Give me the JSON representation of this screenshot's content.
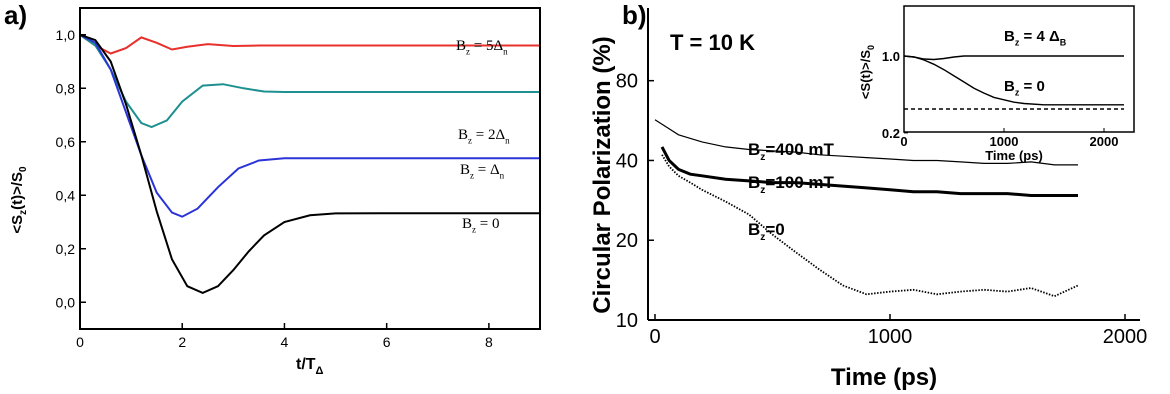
{
  "chart_data": [
    {
      "panel": "a)",
      "type": "line",
      "xlabel": "t/T",
      "xlabel_sub": "Δ",
      "ylabel": "<S",
      "ylabel_sub": "z",
      "ylabel_rest": "(t)>/S",
      "ylabel_sub2": "0",
      "xlim": [
        0,
        9
      ],
      "ylim": [
        -0.1,
        1.1
      ],
      "xticks": [
        0,
        2,
        4,
        6,
        8
      ],
      "xtick_labels": [
        "0",
        "2",
        "4",
        "6",
        "8"
      ],
      "yticks": [
        0.0,
        0.2,
        0.4,
        0.6,
        0.8,
        1.0
      ],
      "ytick_labels": [
        "0,0",
        "0,2",
        "0,4",
        "0,6",
        "0,8",
        "1,0"
      ],
      "series": [
        {
          "name": "B_z = 5Δ_n",
          "label_main": "B",
          "label_sub": "z",
          "label_rest": " = 5Δ",
          "label_sub2": "n",
          "color": "#e8302c",
          "x": [
            0,
            0.3,
            0.6,
            0.9,
            1.2,
            1.5,
            1.8,
            2.1,
            2.5,
            3.0,
            3.5,
            4.0,
            5.0,
            6.0,
            7.0,
            8.0,
            9.0
          ],
          "y": [
            1.0,
            0.96,
            0.93,
            0.95,
            0.99,
            0.97,
            0.945,
            0.955,
            0.965,
            0.958,
            0.96,
            0.96,
            0.96,
            0.96,
            0.96,
            0.96,
            0.96
          ]
        },
        {
          "name": "B_z = 2Δ_n",
          "label_main": "B",
          "label_sub": "z",
          "label_rest": " = 2Δ",
          "label_sub2": "n",
          "color": "#1e9090",
          "x": [
            0,
            0.3,
            0.6,
            0.9,
            1.2,
            1.4,
            1.7,
            2.0,
            2.4,
            2.8,
            3.2,
            3.6,
            4.0,
            5.0,
            6.0,
            7.0,
            8.0,
            9.0
          ],
          "y": [
            1.0,
            0.96,
            0.87,
            0.75,
            0.67,
            0.655,
            0.68,
            0.75,
            0.81,
            0.815,
            0.8,
            0.788,
            0.786,
            0.786,
            0.786,
            0.786,
            0.786,
            0.786
          ]
        },
        {
          "name": "B_z = Δ_n",
          "label_main": "B",
          "label_sub": "z",
          "label_rest": " = Δ",
          "label_sub2": "n",
          "color": "#2a34d8",
          "x": [
            0,
            0.3,
            0.6,
            0.9,
            1.2,
            1.5,
            1.8,
            2.0,
            2.3,
            2.7,
            3.1,
            3.5,
            4.0,
            4.5,
            5.0,
            6.0,
            7.0,
            8.0,
            9.0
          ],
          "y": [
            1.0,
            0.97,
            0.87,
            0.71,
            0.55,
            0.41,
            0.335,
            0.32,
            0.35,
            0.43,
            0.5,
            0.53,
            0.538,
            0.538,
            0.538,
            0.538,
            0.538,
            0.538,
            0.538
          ]
        },
        {
          "name": "B_z = 0",
          "label_main": "B",
          "label_sub": "z",
          "label_rest": " = 0",
          "label_sub2": "",
          "color": "#000000",
          "x": [
            0,
            0.3,
            0.6,
            0.9,
            1.2,
            1.5,
            1.8,
            2.1,
            2.4,
            2.7,
            3.0,
            3.3,
            3.6,
            4.0,
            4.5,
            5.0,
            6.0,
            7.0,
            8.0,
            9.0
          ],
          "y": [
            1.0,
            0.98,
            0.9,
            0.74,
            0.55,
            0.34,
            0.16,
            0.06,
            0.035,
            0.06,
            0.12,
            0.19,
            0.25,
            0.3,
            0.325,
            0.332,
            0.333,
            0.333,
            0.333,
            0.333
          ]
        }
      ]
    },
    {
      "panel": "b)",
      "type": "line",
      "annotation": "T = 10 K",
      "xlabel": "Time (ps)",
      "ylabel": "Circular Polarization (%)",
      "xlim": [
        0,
        2000
      ],
      "ylog": true,
      "ylim": [
        10,
        100
      ],
      "xticks": [
        0,
        1000,
        2000
      ],
      "xtick_labels": [
        "0",
        "1000",
        "2000"
      ],
      "yticks": [
        10,
        20,
        40,
        80
      ],
      "ytick_labels": [
        "10",
        "20",
        "40",
        "80"
      ],
      "series": [
        {
          "name": "B_z=400 mT",
          "label_main": "B",
          "label_sub": "z",
          "label_rest": "=400 mT",
          "color": "#000000",
          "width": 1.2,
          "x": [
            0,
            100,
            200,
            300,
            400,
            500,
            600,
            700,
            800,
            900,
            1000,
            1100,
            1200,
            1300,
            1400,
            1500,
            1600,
            1700,
            1800
          ],
          "y": [
            57,
            50,
            47,
            45,
            44,
            43.5,
            43,
            42,
            41.5,
            41,
            40.5,
            40,
            40,
            39.5,
            39,
            39,
            39.5,
            38.5,
            38.5
          ]
        },
        {
          "name": "B_z=100 mT",
          "label_main": "B",
          "label_sub": "z",
          "label_rest": "=100 mT",
          "color": "#000000",
          "width": 3,
          "x": [
            30,
            60,
            100,
            150,
            200,
            300,
            400,
            500,
            600,
            700,
            800,
            900,
            1000,
            1100,
            1200,
            1300,
            1400,
            1500,
            1600,
            1700,
            1800
          ],
          "y": [
            45,
            40,
            37,
            35.5,
            35,
            34,
            33.5,
            33,
            33,
            32.5,
            32,
            31.5,
            31,
            30.5,
            30.5,
            30,
            30,
            30,
            29.5,
            29.5,
            29.5
          ]
        },
        {
          "name": "B_z=0",
          "label_main": "B",
          "label_sub": "z",
          "label_rest": "=0",
          "color": "#000000",
          "width": 1.8,
          "dotted": true,
          "x": [
            30,
            60,
            100,
            150,
            200,
            300,
            400,
            500,
            600,
            700,
            800,
            900,
            1000,
            1100,
            1200,
            1300,
            1400,
            1500,
            1600,
            1700,
            1800
          ],
          "y": [
            42,
            38,
            35,
            33,
            31,
            28,
            25,
            21,
            18,
            15.5,
            13.5,
            12.5,
            12.8,
            13,
            12.5,
            12.8,
            13,
            12.8,
            13.2,
            12.3,
            13.5
          ]
        }
      ]
    },
    {
      "panel": "b) inset",
      "type": "line",
      "xlabel": "Time (ps)",
      "ylabel": "<S(t)>/S",
      "ylabel_sub": "0",
      "xlim": [
        0,
        2200
      ],
      "ylim": [
        0.2,
        1.3
      ],
      "xticks": [
        0,
        1000,
        2000
      ],
      "xtick_labels": [
        "0",
        "1000",
        "2000"
      ],
      "yticks": [
        0.2,
        1.0
      ],
      "ytick_labels": [
        "0.2",
        "1.0"
      ],
      "series": [
        {
          "name": "B_z = 4 Δ_B",
          "label_main": "B",
          "label_sub": "z",
          "label_rest": " = 4 Δ",
          "label_sub2": "B",
          "color": "#000000",
          "x": [
            0,
            100,
            200,
            300,
            400,
            500,
            600,
            800,
            1000,
            1500,
            2200
          ],
          "y": [
            1.0,
            0.98,
            0.94,
            0.93,
            0.95,
            0.98,
            1.0,
            1.0,
            1.0,
            1.0,
            1.0
          ]
        },
        {
          "name": "B_z = 0",
          "label_main": "B",
          "label_sub": "z",
          "label_rest": " = 0",
          "label_sub2": "",
          "color": "#000000",
          "x": [
            0,
            100,
            200,
            300,
            400,
            500,
            600,
            700,
            800,
            900,
            1000,
            1100,
            1200,
            1400,
            1600,
            2200
          ],
          "y": [
            1.0,
            0.98,
            0.92,
            0.84,
            0.75,
            0.66,
            0.58,
            0.51,
            0.46,
            0.42,
            0.4,
            0.38,
            0.37,
            0.36,
            0.36,
            0.36
          ]
        },
        {
          "name": "",
          "color": "#000000",
          "dashed": true,
          "x": [
            0,
            2200
          ],
          "y": [
            0.33,
            0.33
          ]
        }
      ]
    }
  ]
}
